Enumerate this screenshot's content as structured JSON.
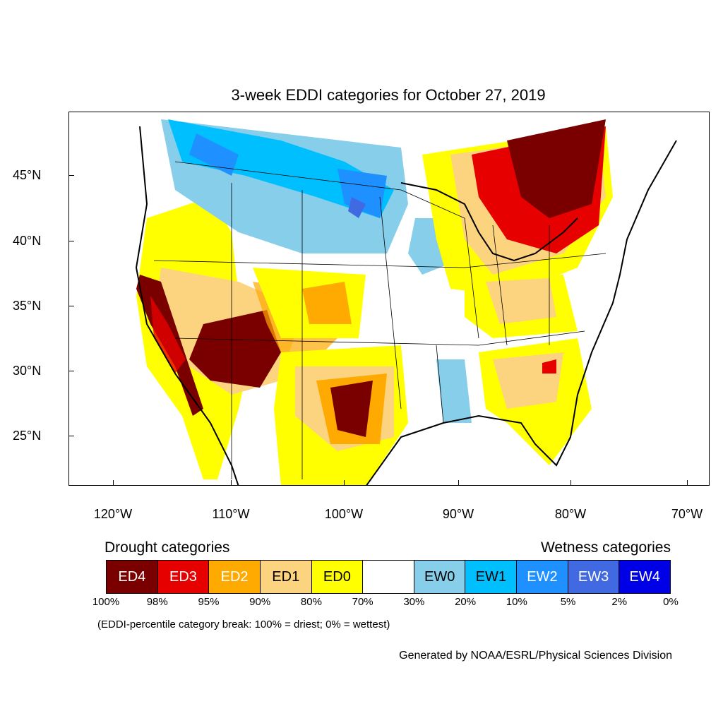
{
  "title": "3-week EDDI categories for October 27, 2019",
  "map": {
    "lat_labels": [
      "45°N",
      "40°N",
      "35°N",
      "30°N",
      "25°N"
    ],
    "lon_labels": [
      "120°W",
      "110°W",
      "100°W",
      "90°W",
      "80°W",
      "70°W"
    ],
    "lat_values": [
      45,
      40,
      35,
      30,
      25
    ],
    "lon_values": [
      -120,
      -110,
      -100,
      -90,
      -80,
      -70
    ],
    "regions": [
      {
        "category": "ED4",
        "area": "Southwest (Arizona, southern California, Nevada)"
      },
      {
        "category": "ED4",
        "area": "Central Texas"
      },
      {
        "category": "ED4",
        "area": "Great Lakes / Ontario"
      },
      {
        "category": "ED1",
        "area": "Southeast (Georgia, South Carolina)"
      },
      {
        "category": "EW2",
        "area": "Northern Plains / Montana"
      },
      {
        "category": "EW0",
        "area": "Lower Mississippi Valley"
      }
    ]
  },
  "legend": {
    "drought_heading": "Drought categories",
    "wetness_heading": "Wetness categories",
    "boxes": [
      {
        "label": "ED4",
        "color": "#7a0000",
        "text_color": "#ffffff"
      },
      {
        "label": "ED3",
        "color": "#e60000",
        "text_color": "#ffffff"
      },
      {
        "label": "ED2",
        "color": "#ffaa00",
        "text_color": "#ffffff"
      },
      {
        "label": "ED1",
        "color": "#fcd37f",
        "text_color": "#000000"
      },
      {
        "label": "ED0",
        "color": "#ffff00",
        "text_color": "#000000"
      },
      {
        "label": "",
        "color": "#ffffff",
        "text_color": "#000000"
      },
      {
        "label": "EW0",
        "color": "#87ceeb",
        "text_color": "#000000"
      },
      {
        "label": "EW1",
        "color": "#00bfff",
        "text_color": "#000000"
      },
      {
        "label": "EW2",
        "color": "#1e90ff",
        "text_color": "#ffffff"
      },
      {
        "label": "EW3",
        "color": "#4169e1",
        "text_color": "#ffffff"
      },
      {
        "label": "EW4",
        "color": "#0000e6",
        "text_color": "#ffffff"
      }
    ],
    "breaks": [
      "100%",
      "98%",
      "95%",
      "90%",
      "80%",
      "70%",
      "30%",
      "20%",
      "10%",
      "5%",
      "2%",
      "0%"
    ],
    "note": "(EDDI-percentile category break: 100% = driest; 0% = wettest)"
  },
  "credit": "Generated by NOAA/ESRL/Physical Sciences Division"
}
